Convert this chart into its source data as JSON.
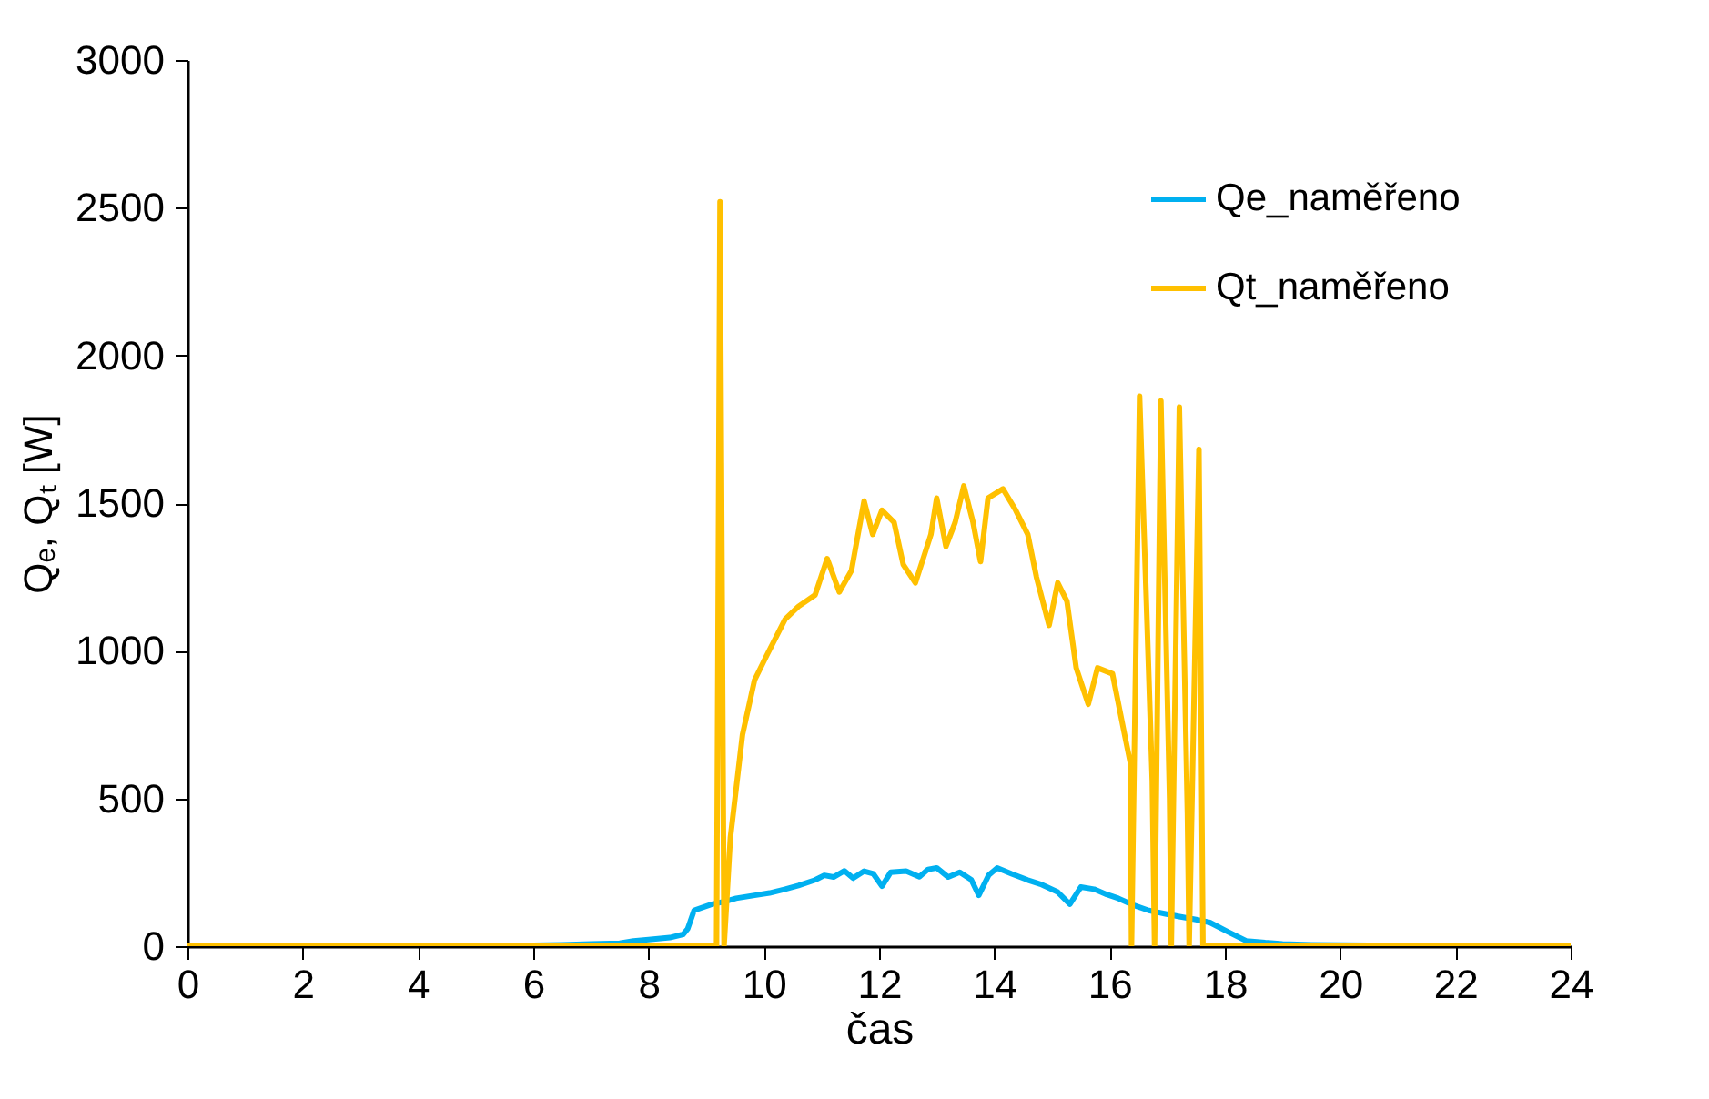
{
  "chart_data": {
    "type": "line",
    "xlabel": "čas",
    "ylabel": "Qₑ, Qₜ [W]",
    "xlim": [
      0,
      24
    ],
    "ylim": [
      0,
      3000
    ],
    "xticks": [
      0,
      2,
      4,
      6,
      8,
      10,
      12,
      14,
      16,
      18,
      20,
      22,
      24
    ],
    "yticks": [
      0,
      500,
      1000,
      1500,
      2000,
      2500,
      3000
    ],
    "grid": false,
    "legend": "top right",
    "series": [
      {
        "name": "Qe_naměřeno",
        "color": "#00b0f0",
        "x": [
          0,
          5,
          6,
          6.5,
          7,
          7.5,
          7.74,
          8,
          8.37,
          8.6,
          8.68,
          8.79,
          9.1,
          9.3,
          9.52,
          9.84,
          10.1,
          10.37,
          10.6,
          10.89,
          11.05,
          11.21,
          11.4,
          11.55,
          11.74,
          11.9,
          12.05,
          12.2,
          12.47,
          12.7,
          12.85,
          13,
          13.2,
          13.4,
          13.6,
          13.73,
          13.9,
          14.05,
          14.3,
          14.58,
          14.8,
          15.1,
          15.31,
          15.5,
          15.73,
          15.95,
          16.15,
          16.4,
          16.68,
          16.95,
          17.21,
          17.5,
          17.74,
          18.05,
          18.37,
          18.7,
          19,
          19.5,
          20.5,
          22,
          24
        ],
        "values": [
          0,
          0,
          3,
          5,
          8,
          10,
          18,
          22,
          29,
          40,
          59,
          121,
          142,
          150,
          162,
          172,
          180,
          193,
          205,
          224,
          240,
          234,
          255,
          230,
          254,
          245,
          203,
          250,
          254,
          235,
          260,
          265,
          234,
          250,
          225,
          172,
          240,
          265,
          245,
          224,
          210,
          183,
          142,
          200,
          193,
          175,
          162,
          140,
          121,
          110,
          100,
          90,
          80,
          49,
          18,
          12,
          8,
          5,
          3,
          0,
          0
        ]
      },
      {
        "name": "Qt_naměřeno",
        "color": "#ffc000",
        "x": [
          0,
          9.18,
          9.24,
          9.31,
          9.42,
          9.63,
          9.84,
          10.05,
          10.37,
          10.6,
          10.89,
          11.1,
          11.31,
          11.52,
          11.74,
          11.89,
          12.05,
          12.26,
          12.42,
          12.63,
          12.9,
          13.0,
          13.16,
          13.32,
          13.47,
          13.63,
          13.76,
          13.89,
          14.15,
          14.37,
          14.58,
          14.73,
          14.95,
          15.1,
          15.26,
          15.42,
          15.63,
          15.79,
          16.05,
          16.26,
          16.36,
          16.38,
          16.52,
          16.74,
          16.78,
          16.89,
          17.04,
          17.07,
          17.21,
          17.35,
          17.38,
          17.55,
          17.62,
          24
        ],
        "values": [
          0,
          0,
          2520,
          0,
          367,
          716,
          901,
          984,
          1107,
          1150,
          1189,
          1312,
          1199,
          1271,
          1507,
          1394,
          1476,
          1435,
          1292,
          1230,
          1394,
          1517,
          1353,
          1435,
          1558,
          1435,
          1302,
          1517,
          1548,
          1476,
          1394,
          1250,
          1086,
          1230,
          1168,
          942,
          819,
          942,
          922,
          716,
          620,
          0,
          1862,
          560,
          0,
          1846,
          500,
          0,
          1825,
          450,
          0,
          1682,
          0,
          0
        ]
      }
    ]
  }
}
